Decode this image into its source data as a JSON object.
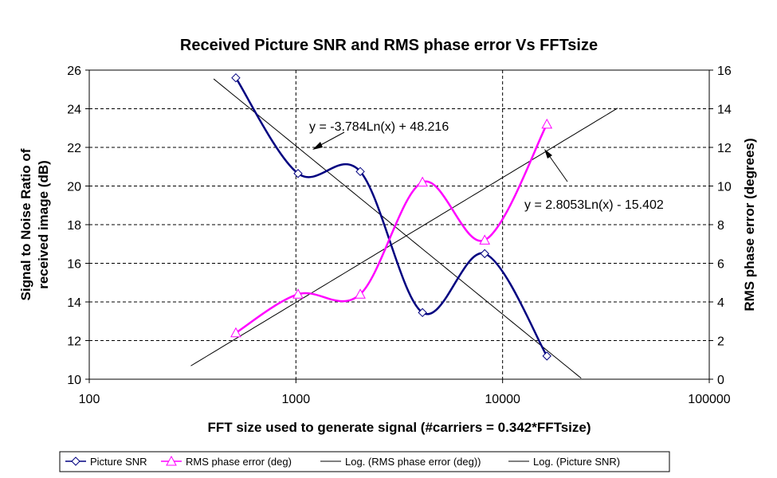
{
  "chart_data": {
    "type": "line",
    "title": "Received Picture SNR and RMS phase error Vs FFTsize",
    "xlabel": "FFT size used to generate signal (#carriers = 0.342*FFTsize)",
    "ylabel_lines": [
      "Signal to Noise Ratio of",
      "received image (dB)"
    ],
    "y2label": "RMS phase error (degrees)",
    "x_scale": "log",
    "xlim": [
      100,
      100000
    ],
    "ylim": [
      10,
      26
    ],
    "y2lim": [
      0,
      16
    ],
    "x_ticks": [
      100,
      1000,
      10000,
      100000
    ],
    "x_tick_labels": [
      "100",
      "1000",
      "10000",
      "100000"
    ],
    "y_ticks": [
      10,
      12,
      14,
      16,
      18,
      20,
      22,
      24,
      26
    ],
    "y_tick_labels": [
      "10",
      "12",
      "14",
      "16",
      "18",
      "20",
      "22",
      "24",
      "26"
    ],
    "y2_ticks": [
      0,
      2,
      4,
      6,
      8,
      10,
      12,
      14,
      16
    ],
    "y2_tick_labels": [
      "0",
      "2",
      "4",
      "6",
      "8",
      "10",
      "12",
      "14",
      "16"
    ],
    "grid": "dashed at major x and y ticks",
    "series": [
      {
        "name": "Picture SNR",
        "axis": "left",
        "color": "#000080",
        "marker": "diamond",
        "x": [
          512,
          1024,
          2048,
          4096,
          8192,
          16384
        ],
        "y": [
          25.6,
          20.65,
          20.75,
          13.45,
          16.5,
          11.2
        ]
      },
      {
        "name": "RMS phase error (deg)",
        "axis": "right",
        "color": "#FF00FF",
        "marker": "triangle",
        "x": [
          512,
          1024,
          2048,
          4096,
          8192,
          16384
        ],
        "y": [
          2.4,
          4.4,
          4.4,
          10.2,
          7.2,
          13.2
        ]
      }
    ],
    "trendlines": [
      {
        "name": "Log. (RMS phase error (deg))",
        "axis": "right",
        "color": "#000000",
        "a": 2.8053,
        "b": -15.402,
        "x_range": [
          310,
          36000
        ],
        "equation": "y = 2.8053Ln(x) - 15.402"
      },
      {
        "name": "Log. (Picture SNR)",
        "axis": "left",
        "color": "#000000",
        "a": -3.784,
        "b": 48.216,
        "x_range": [
          400,
          24000
        ],
        "equation": "y = -3.784Ln(x) + 48.216"
      }
    ],
    "legend": {
      "placement": "bottom",
      "entries": [
        {
          "label": "Picture SNR",
          "color": "#000080",
          "marker": "diamond"
        },
        {
          "label": "RMS phase error (deg)",
          "color": "#FF00FF",
          "marker": "triangle"
        },
        {
          "label": "Log. (RMS phase error (deg))",
          "color": "#000000",
          "marker": "none"
        },
        {
          "label": "Log. (Picture SNR)",
          "color": "#000000",
          "marker": "none"
        }
      ]
    }
  }
}
